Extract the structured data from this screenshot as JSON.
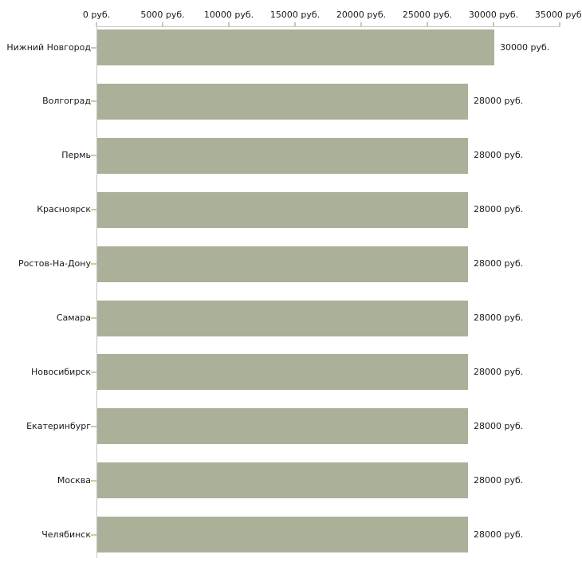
{
  "chart_data": {
    "type": "bar",
    "orientation": "horizontal",
    "title": "",
    "xlabel": "",
    "ylabel": "",
    "unit": "руб.",
    "categories": [
      "Нижний Новгород",
      "Волгоград",
      "Пермь",
      "Красноярск",
      "Ростов-На-Дону",
      "Самара",
      "Новосибирск",
      "Екатеринбург",
      "Москва",
      "Челябинск"
    ],
    "values": [
      30000,
      28000,
      28000,
      28000,
      28000,
      28000,
      28000,
      28000,
      28000,
      28000
    ],
    "value_labels": [
      "30000 руб.",
      "28000 руб.",
      "28000 руб.",
      "28000 руб.",
      "28000 руб.",
      "28000 руб.",
      "28000 руб.",
      "28000 руб.",
      "28000 руб.",
      "28000 руб."
    ],
    "xlim": [
      0,
      35000
    ],
    "x_ticks": [
      0,
      5000,
      10000,
      15000,
      20000,
      25000,
      30000,
      35000
    ],
    "x_tick_labels": [
      "0 руб.",
      "5000 руб.",
      "10000 руб.",
      "15000 руб.",
      "20000 руб.",
      "25000 руб.",
      "30000 руб.",
      "35000 руб."
    ],
    "grid": false,
    "legend_position": "none",
    "colors": {
      "bar": "#abb199",
      "axis_line": "#c6c6c6",
      "tick_mark": "#cbcba0",
      "text": "#1a1a1a",
      "background": "#ffffff"
    }
  }
}
